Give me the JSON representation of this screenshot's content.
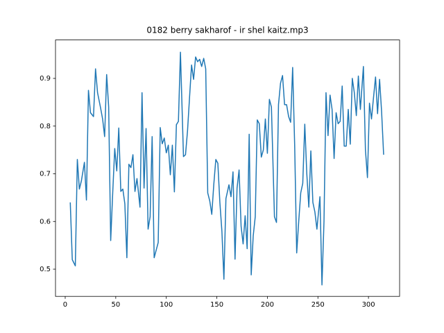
{
  "chart_data": {
    "type": "line",
    "title": "0182 berry sakharof - ir shel kaitz.mp3",
    "x": [
      5,
      7,
      10,
      12,
      14,
      16,
      19,
      21,
      23,
      25,
      28,
      30,
      32,
      35,
      37,
      39,
      41,
      43,
      45,
      47,
      49,
      51,
      53,
      55,
      57,
      59,
      61,
      63,
      65,
      67,
      69,
      71,
      74,
      76,
      78,
      80,
      82,
      84,
      86,
      88,
      90,
      92,
      94,
      96,
      98,
      100,
      102,
      104,
      106,
      108,
      110,
      112,
      114,
      117,
      119,
      121,
      123,
      125,
      127,
      129,
      131,
      133,
      135,
      137,
      139,
      141,
      143,
      145,
      147,
      149,
      151,
      153,
      155,
      157,
      159,
      162,
      164,
      166,
      168,
      170,
      172,
      174,
      176,
      178,
      180,
      182,
      184,
      186,
      188,
      190,
      192,
      194,
      196,
      198,
      200,
      202,
      204,
      207,
      209,
      211,
      213,
      215,
      217,
      219,
      221,
      223,
      225,
      227,
      229,
      231,
      233,
      235,
      237,
      239,
      241,
      243,
      245,
      247,
      249,
      252,
      254,
      256,
      258,
      260,
      262,
      264,
      266,
      268,
      270,
      272,
      274,
      276,
      278,
      280,
      282,
      284,
      286,
      288,
      290,
      292,
      295,
      297,
      299,
      301,
      303,
      305,
      307,
      309,
      311,
      313,
      315
    ],
    "series": [
      {
        "color": "#1f77b4",
        "values": [
          0.64,
          0.52,
          0.507,
          0.73,
          0.668,
          0.685,
          0.724,
          0.645,
          0.875,
          0.828,
          0.82,
          0.92,
          0.87,
          0.838,
          0.815,
          0.778,
          0.908,
          0.84,
          0.56,
          0.66,
          0.753,
          0.706,
          0.796,
          0.663,
          0.668,
          0.637,
          0.524,
          0.72,
          0.713,
          0.74,
          0.663,
          0.69,
          0.63,
          0.87,
          0.67,
          0.795,
          0.584,
          0.61,
          0.778,
          0.524,
          0.54,
          0.556,
          0.797,
          0.763,
          0.775,
          0.744,
          0.76,
          0.698,
          0.76,
          0.662,
          0.803,
          0.81,
          0.955,
          0.736,
          0.74,
          0.79,
          0.86,
          0.928,
          0.898,
          0.945,
          0.935,
          0.94,
          0.925,
          0.942,
          0.92,
          0.66,
          0.643,
          0.615,
          0.678,
          0.73,
          0.722,
          0.64,
          0.58,
          0.479,
          0.648,
          0.677,
          0.652,
          0.704,
          0.521,
          0.67,
          0.708,
          0.59,
          0.553,
          0.612,
          0.543,
          0.783,
          0.488,
          0.57,
          0.61,
          0.813,
          0.805,
          0.735,
          0.75,
          0.815,
          0.743,
          0.856,
          0.84,
          0.61,
          0.598,
          0.845,
          0.89,
          0.906,
          0.845,
          0.845,
          0.82,
          0.808,
          0.923,
          0.76,
          0.534,
          0.6,
          0.66,
          0.68,
          0.804,
          0.7,
          0.63,
          0.748,
          0.64,
          0.62,
          0.584,
          0.652,
          0.467,
          0.6,
          0.87,
          0.78,
          0.865,
          0.835,
          0.732,
          0.828,
          0.805,
          0.81,
          0.884,
          0.758,
          0.758,
          0.835,
          0.762,
          0.9,
          0.87,
          0.822,
          0.905,
          0.835,
          0.925,
          0.75,
          0.692,
          0.848,
          0.815,
          0.86,
          0.903,
          0.826,
          0.898,
          0.83,
          0.74
        ]
      }
    ],
    "xlim": [
      -9.6,
      330.8
    ],
    "ylim": [
      0.443,
      0.9806
    ],
    "xticks": [
      0,
      50,
      100,
      150,
      200,
      250,
      300
    ],
    "yticks": [
      0.5,
      0.6,
      0.7,
      0.8,
      0.9
    ]
  }
}
